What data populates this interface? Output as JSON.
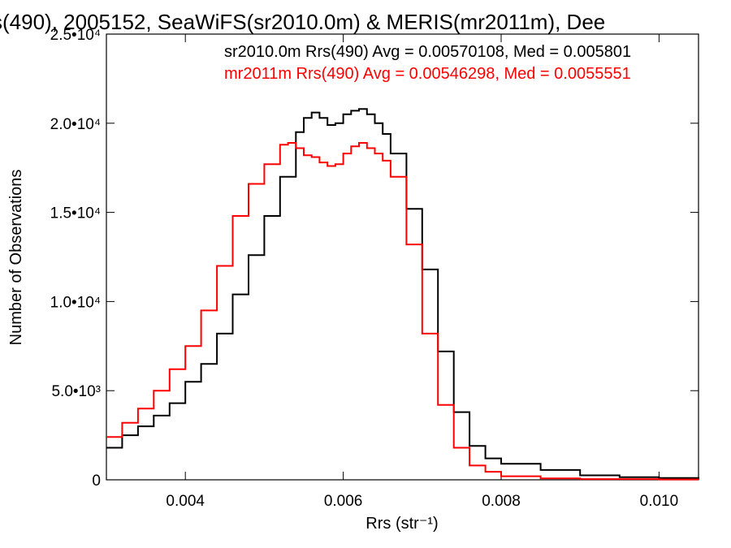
{
  "chart_data": {
    "type": "line",
    "title": "s(490), 2005152, SeaWiFS(sr2010.0m) & MERIS(mr2011m), Dee",
    "xlabel": "Rrs (str⁻¹)",
    "ylabel": "Number of Observations",
    "xlim": [
      0.003,
      0.0105
    ],
    "ylim": [
      0,
      25000
    ],
    "x_ticks": [
      {
        "value": 0.004,
        "label": "0.004"
      },
      {
        "value": 0.006,
        "label": "0.006"
      },
      {
        "value": 0.008,
        "label": "0.008"
      },
      {
        "value": 0.01,
        "label": "0.010"
      }
    ],
    "y_ticks": [
      {
        "value": 0,
        "label": "0"
      },
      {
        "value": 5000,
        "label": "5.0•10³"
      },
      {
        "value": 10000,
        "label": "1.0•10⁴"
      },
      {
        "value": 15000,
        "label": "1.5•10⁴"
      },
      {
        "value": 20000,
        "label": "2.0•10⁴"
      },
      {
        "value": 25000,
        "label": "2.5•10⁴"
      }
    ],
    "grid": false,
    "legend_position": "top-right",
    "series": [
      {
        "name": "sr2010.0m Rrs(490) Avg = 0.00570108, Med = 0.005801",
        "color": "#000000",
        "x": [
          0.003,
          0.0032,
          0.0034,
          0.0036,
          0.0038,
          0.004,
          0.0042,
          0.0044,
          0.0046,
          0.0048,
          0.005,
          0.0052,
          0.0054,
          0.0055,
          0.0056,
          0.0057,
          0.0058,
          0.0059,
          0.006,
          0.0061,
          0.0062,
          0.0063,
          0.0064,
          0.0065,
          0.0066,
          0.0068,
          0.007,
          0.0072,
          0.0074,
          0.0076,
          0.0078,
          0.008,
          0.0085,
          0.009,
          0.0095,
          0.01,
          0.0105
        ],
        "y": [
          1800,
          2500,
          3000,
          3600,
          4300,
          5500,
          6500,
          8200,
          10400,
          12600,
          14800,
          17000,
          19500,
          20300,
          20600,
          20300,
          19900,
          20000,
          20500,
          20700,
          20800,
          20500,
          20000,
          19400,
          18300,
          15200,
          11800,
          7200,
          3800,
          1900,
          1200,
          900,
          550,
          250,
          150,
          100,
          50
        ]
      },
      {
        "name": "mr2011m Rrs(490) Avg = 0.00546298, Med = 0.0055551",
        "color": "#ff0000",
        "x": [
          0.003,
          0.0032,
          0.0034,
          0.0036,
          0.0038,
          0.004,
          0.0042,
          0.0044,
          0.0046,
          0.0048,
          0.005,
          0.0052,
          0.0053,
          0.0054,
          0.0055,
          0.0056,
          0.0057,
          0.0058,
          0.0059,
          0.006,
          0.0061,
          0.0062,
          0.0063,
          0.0064,
          0.0065,
          0.0066,
          0.0068,
          0.007,
          0.0072,
          0.0074,
          0.0076,
          0.0078,
          0.008,
          0.0085,
          0.009,
          0.01,
          0.0105
        ],
        "y": [
          2400,
          3200,
          4000,
          5000,
          6200,
          7500,
          9500,
          12000,
          14800,
          16600,
          17700,
          18800,
          18900,
          18600,
          18200,
          18100,
          17800,
          17600,
          17700,
          18300,
          18700,
          18900,
          18600,
          18300,
          17900,
          17000,
          13200,
          8200,
          4200,
          1800,
          800,
          450,
          200,
          80,
          40,
          20,
          10
        ]
      }
    ]
  }
}
